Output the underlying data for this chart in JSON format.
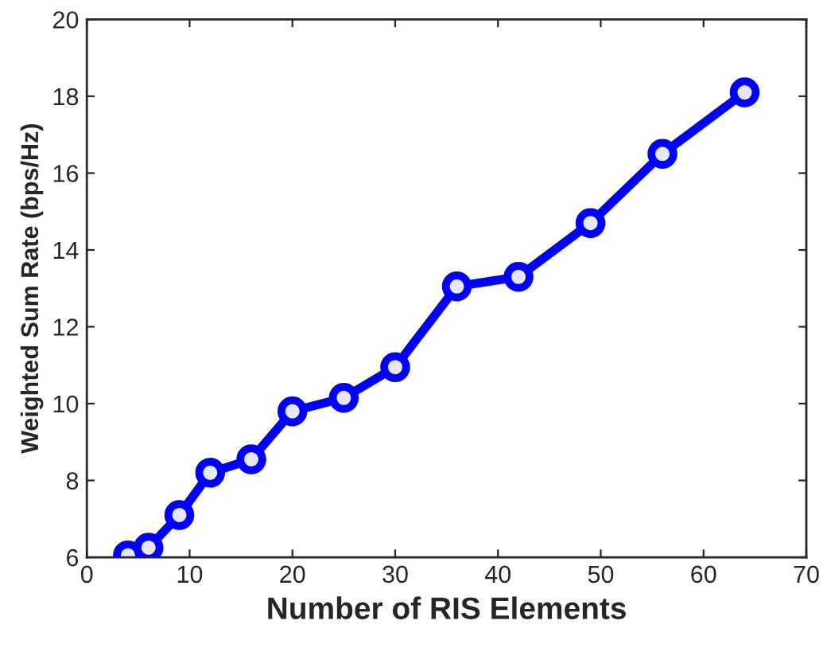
{
  "chart_data": {
    "type": "line",
    "xlabel": "Number of RIS Elements",
    "ylabel": "Weighted Sum Rate (bps/Hz)",
    "x": [
      4,
      6,
      9,
      12,
      16,
      20,
      25,
      30,
      36,
      42,
      49,
      56,
      64
    ],
    "series": [
      {
        "color": "#0000ff",
        "values": [
          6.05,
          6.25,
          7.1,
          8.2,
          8.55,
          9.8,
          10.15,
          10.95,
          13.05,
          13.3,
          14.7,
          16.5,
          18.1
        ]
      }
    ],
    "xlim": [
      0,
      70
    ],
    "xticks": [
      0,
      10,
      20,
      30,
      40,
      50,
      60,
      70
    ],
    "ylim": [
      6,
      20
    ],
    "yticks": [
      6,
      8,
      10,
      12,
      14,
      16,
      18,
      20
    ],
    "grid": false,
    "legend": false,
    "marker": "circle",
    "line_style": "solid"
  }
}
